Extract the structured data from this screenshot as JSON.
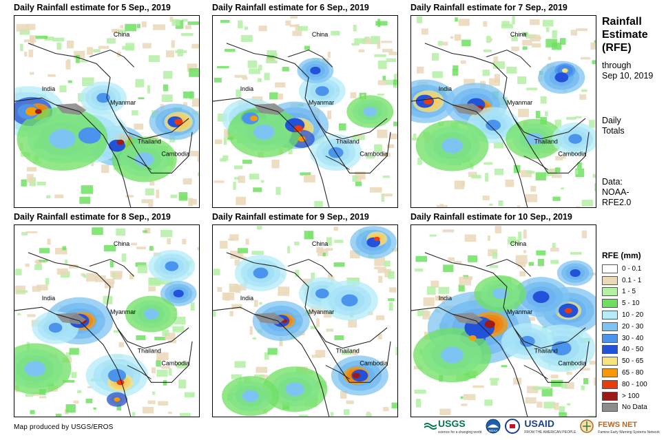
{
  "side": {
    "title_line1": "Rainfall",
    "title_line2": "Estimate",
    "title_line3": "(RFE)",
    "through": "through",
    "through_date": "Sep 10, 2019",
    "daily": "Daily",
    "totals": "Totals",
    "data_label": "Data:",
    "data_source1": "NOAA-",
    "data_source2": "RFE2.0"
  },
  "panels": [
    {
      "title": "Daily Rainfall estimate for 5 Sep., 2019"
    },
    {
      "title": "Daily Rainfall estimate for 6 Sep., 2019"
    },
    {
      "title": "Daily Rainfall estimate for 7 Sep., 2019"
    },
    {
      "title": "Daily Rainfall estimate for 8 Sep., 2019"
    },
    {
      "title": "Daily Rainfall estimate for 9 Sep., 2019"
    },
    {
      "title": "Daily Rainfall estimate for 10 Sep., 2019"
    }
  ],
  "map_labels": {
    "china": "China",
    "india": "India",
    "myanmar": "Myanmar",
    "thailand": "Thailand",
    "cambodia": "Cambodia"
  },
  "legend": {
    "title": "RFE (mm)",
    "items": [
      {
        "label": "0 - 0.1",
        "color": "#ffffff"
      },
      {
        "label": "0.1 - 1",
        "color": "#ead8b8"
      },
      {
        "label": "1 - 5",
        "color": "#b4f0a4"
      },
      {
        "label": "5 - 10",
        "color": "#6ee060"
      },
      {
        "label": "10 - 20",
        "color": "#b4ecf8"
      },
      {
        "label": "20 - 30",
        "color": "#7ec4f2"
      },
      {
        "label": "30 - 40",
        "color": "#4a94ee"
      },
      {
        "label": "40 - 50",
        "color": "#2352da"
      },
      {
        "label": "50 - 65",
        "color": "#f8e27a"
      },
      {
        "label": "65 - 80",
        "color": "#f89a08"
      },
      {
        "label": "80 - 100",
        "color": "#e83c0c"
      },
      {
        "label": "> 100",
        "color": "#9c1a1a"
      },
      {
        "label": "No Data",
        "color": "#8c8c8c"
      }
    ]
  },
  "credit": "Map produced by USGS/EROS",
  "logos": {
    "usgs": "USGS",
    "usgs_tagline": "science for a changing world",
    "noaa": "NOAA",
    "usaid": "USAID",
    "usaid_tagline": "FROM THE AMERICAN PEOPLE",
    "fewsnet": "FEWS NET",
    "fewsnet_tagline": "Famine Early Warning Systems Network"
  }
}
